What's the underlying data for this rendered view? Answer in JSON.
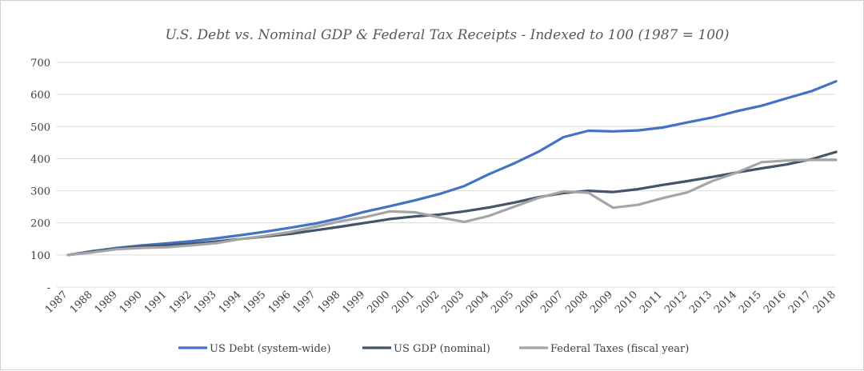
{
  "chart_data": {
    "type": "line",
    "title": "U.S. Debt vs. Nominal GDP & Federal Tax Receipts - Indexed to 100 (1987 = 100)",
    "x": [
      "1987",
      "1988",
      "1989",
      "1990",
      "1991",
      "1992",
      "1993",
      "1994",
      "1995",
      "1996",
      "1997",
      "1998",
      "1999",
      "2000",
      "2001",
      "2002",
      "2003",
      "2004",
      "2005",
      "2006",
      "2007",
      "2008",
      "2009",
      "2010",
      "2011",
      "2012",
      "2013",
      "2014",
      "2015",
      "2016",
      "2017",
      "2018"
    ],
    "ylim": [
      0,
      700
    ],
    "yticks": [
      {
        "value": 0,
        "label": "-"
      },
      {
        "value": 100,
        "label": "100"
      },
      {
        "value": 200,
        "label": "200"
      },
      {
        "value": 300,
        "label": "300"
      },
      {
        "value": 400,
        "label": "400"
      },
      {
        "value": 500,
        "label": "500"
      },
      {
        "value": 600,
        "label": "600"
      },
      {
        "value": 700,
        "label": "700"
      }
    ],
    "grid": true,
    "legend_position": "bottom",
    "series": [
      {
        "name": "US Debt (system-wide)",
        "color": "#4472c4",
        "values": [
          100,
          112,
          122,
          130,
          136,
          143,
          152,
          162,
          173,
          185,
          198,
          215,
          235,
          252,
          270,
          290,
          315,
          352,
          385,
          422,
          467,
          487,
          485,
          488,
          497,
          513,
          528,
          548,
          565,
          588,
          610,
          641
        ]
      },
      {
        "name": "US GDP (nominal)",
        "color": "#44546a",
        "values": [
          100,
          110,
          120,
          126,
          130,
          135,
          142,
          150,
          158,
          166,
          177,
          188,
          200,
          212,
          220,
          226,
          236,
          248,
          263,
          280,
          293,
          300,
          296,
          305,
          318,
          330,
          343,
          357,
          370,
          382,
          398,
          421
        ]
      },
      {
        "name": "Federal Taxes (fiscal year)",
        "color": "#a5a5a5",
        "values": [
          100,
          108,
          118,
          122,
          124,
          130,
          137,
          150,
          160,
          172,
          188,
          205,
          218,
          236,
          233,
          217,
          203,
          222,
          250,
          278,
          298,
          294,
          247,
          256,
          277,
          295,
          330,
          357,
          389,
          394,
          396,
          396
        ]
      }
    ]
  }
}
